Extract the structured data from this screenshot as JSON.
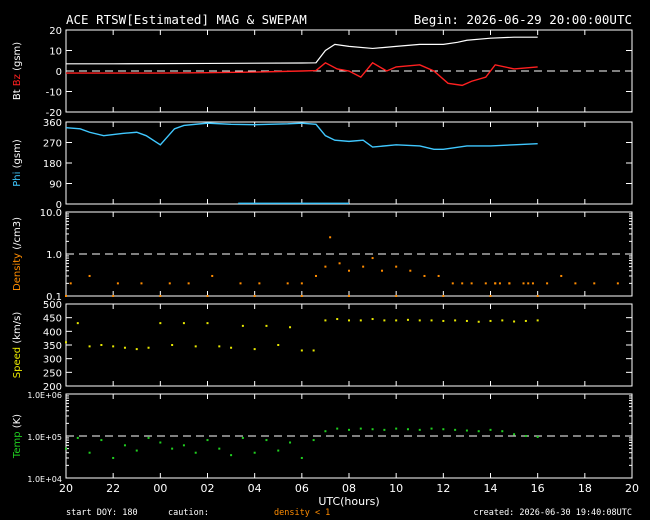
{
  "header": {
    "title": "ACE RTSW[Estimated] MAG & SWEPAM",
    "begin_label": "Begin: 2026-06-29 20:00:00UTC"
  },
  "footer": {
    "start_doy": "start DOY: 180",
    "caution": "caution:",
    "caution_note": "density < 1",
    "created": "created: 2026-06-30 19:40:08UTC"
  },
  "colors": {
    "background": "#000000",
    "frame": "#ffffff",
    "bt": "#ffffff",
    "bz": "#ff2020",
    "phi": "#40c8ff",
    "density": "#ff8c00",
    "speed": "#e8e800",
    "temp": "#20d020"
  },
  "chart_data": [
    {
      "panel": "mag",
      "type": "line",
      "ylabel": [
        "Bt",
        "Bz",
        "(gsm)"
      ],
      "ylim": [
        -20,
        20
      ],
      "yticks": [
        "20",
        "10",
        "0",
        "-10",
        "-20"
      ],
      "reference_line": 0,
      "series": [
        {
          "name": "Bt",
          "x": [
            0,
            2,
            4,
            6,
            8,
            10,
            10.6,
            11,
            11.4,
            12,
            13,
            14,
            15,
            16,
            16.6,
            17,
            18,
            19,
            20
          ],
          "values": [
            3.5,
            3.5,
            3.6,
            3.7,
            3.8,
            3.9,
            4,
            10,
            13,
            12,
            11,
            12,
            13,
            13,
            14,
            15,
            16,
            16.5,
            16.5
          ]
        },
        {
          "name": "Bz",
          "x": [
            0,
            2,
            4,
            6,
            8,
            10,
            10.6,
            11,
            11.5,
            12,
            12.5,
            13,
            13.6,
            14,
            15,
            15.6,
            16.2,
            16.8,
            17.2,
            17.8,
            18.2,
            19,
            20
          ],
          "values": [
            -1,
            -1,
            -1,
            -0.8,
            -0.5,
            0,
            0.2,
            4,
            1,
            0,
            -3,
            4,
            0,
            2,
            3,
            0,
            -6,
            -7,
            -5,
            -3,
            3,
            1,
            2
          ]
        }
      ]
    },
    {
      "panel": "phi",
      "type": "line",
      "ylabel": [
        "Phi",
        "(gsm)"
      ],
      "ylim": [
        0,
        360
      ],
      "yticks": [
        "360",
        "270",
        "180",
        "90",
        "0"
      ],
      "series": [
        {
          "name": "Phi",
          "x": [
            0,
            0.6,
            1,
            1.6,
            2,
            2.4,
            3,
            3.4,
            4,
            4.6,
            5,
            6,
            7,
            8,
            8.6,
            9.4,
            10,
            10.6,
            11,
            11.4,
            12,
            12.6,
            13,
            14,
            15,
            15.6,
            16,
            17,
            18,
            19,
            20
          ],
          "values": [
            335,
            330,
            315,
            300,
            305,
            310,
            315,
            300,
            260,
            330,
            345,
            355,
            350,
            348,
            350,
            352,
            355,
            350,
            300,
            280,
            275,
            280,
            250,
            260,
            255,
            240,
            240,
            255,
            255,
            260,
            265
          ]
        },
        {
          "name": "Phi-low",
          "x": [
            7.3,
            8,
            9,
            10,
            11,
            12
          ],
          "values": [
            3,
            3,
            3,
            3,
            3,
            3
          ]
        }
      ]
    },
    {
      "panel": "density",
      "type": "scatter",
      "ylabel": [
        "Density",
        "(/cm3)"
      ],
      "yscale": "log",
      "ylim": [
        0.1,
        10
      ],
      "yticks": [
        "10.0",
        "1.0",
        "0.1"
      ],
      "reference_line": 1.0,
      "series": [
        {
          "name": "Density",
          "x": [
            18.2,
            18.4,
            18.8,
            19.6,
            20.4,
            21.0,
            21.6,
            22.4,
            23.4,
            0.2,
            1.0,
            2.2,
            3.2,
            4.4,
            5.2,
            6.2,
            7.4,
            8.2,
            9.4,
            10.0,
            10.6,
            11.0,
            11.2,
            11.6,
            12.0,
            12.6,
            13.0,
            13.4,
            14.0,
            14.6,
            15.2,
            15.8,
            16.4,
            16.8,
            17.2,
            17.8,
            18.2,
            18.8,
            19.4,
            19.8
          ],
          "values": [
            0.2,
            0.2,
            0.2,
            0.2,
            0.2,
            0.3,
            0.2,
            0.2,
            0.2,
            0.2,
            0.3,
            0.2,
            0.2,
            0.2,
            0.2,
            0.3,
            0.2,
            0.2,
            0.2,
            0.2,
            0.3,
            0.5,
            2.5,
            0.6,
            0.4,
            0.5,
            0.8,
            0.4,
            0.5,
            0.4,
            0.3,
            0.3,
            0.2,
            0.2,
            0.2,
            0.2,
            0.2,
            0.2,
            0.2,
            0.2
          ]
        },
        {
          "name": "Density-floor",
          "x": [
            0,
            2,
            4,
            6,
            8,
            10,
            12,
            14,
            16,
            18,
            20
          ],
          "values": [
            0.1,
            0.1,
            0.1,
            0.1,
            0.1,
            0.1,
            0.1,
            0.1,
            0.1,
            0.1,
            0.1
          ]
        }
      ]
    },
    {
      "panel": "speed",
      "type": "scatter",
      "ylabel": [
        "Speed",
        "(km/s)"
      ],
      "ylim": [
        200,
        500
      ],
      "yticks": [
        "500",
        "450",
        "400",
        "350",
        "300",
        "250",
        "200"
      ],
      "series": [
        {
          "name": "Speed",
          "x": [
            0,
            0.5,
            1,
            1.5,
            2,
            2.5,
            3,
            3.5,
            4,
            4.5,
            5,
            5.5,
            6,
            6.5,
            7,
            7.5,
            8,
            8.5,
            9,
            9.5,
            10,
            10.5,
            11,
            11.5,
            12,
            12.5,
            13,
            13.5,
            14,
            14.5,
            15,
            15.5,
            16,
            16.5,
            17,
            17.5,
            18,
            18.5,
            19,
            19.5,
            20
          ],
          "values": [
            360,
            430,
            345,
            350,
            345,
            340,
            335,
            340,
            430,
            350,
            430,
            345,
            430,
            345,
            340,
            420,
            335,
            420,
            350,
            415,
            330,
            330,
            440,
            445,
            440,
            440,
            445,
            440,
            440,
            442,
            440,
            440,
            438,
            440,
            438,
            435,
            438,
            440,
            436,
            438,
            440
          ]
        }
      ]
    },
    {
      "panel": "temp",
      "type": "scatter",
      "ylabel": [
        "Temp",
        "(K)"
      ],
      "yscale": "log",
      "ylim": [
        10000,
        1000000
      ],
      "yticks": [
        "1.0E+06",
        "1.0E+05",
        "1.0E+04"
      ],
      "reference_line": 100000,
      "series": [
        {
          "name": "Temp",
          "x": [
            0,
            0.5,
            1,
            1.5,
            2,
            2.5,
            3,
            3.5,
            4,
            4.5,
            5,
            5.5,
            6,
            6.5,
            7,
            7.5,
            8,
            8.5,
            9,
            9.5,
            10,
            10.5,
            11,
            11.5,
            12,
            12.5,
            13,
            13.5,
            14,
            14.5,
            15,
            15.5,
            16,
            16.5,
            17,
            17.5,
            18,
            18.5,
            19,
            19.5,
            20
          ],
          "values": [
            50000,
            90000,
            40000,
            80000,
            30000,
            60000,
            45000,
            90000,
            70000,
            50000,
            60000,
            40000,
            80000,
            50000,
            35000,
            90000,
            40000,
            80000,
            45000,
            70000,
            30000,
            80000,
            130000,
            150000,
            140000,
            150000,
            145000,
            140000,
            150000,
            145000,
            140000,
            150000,
            145000,
            140000,
            135000,
            130000,
            140000,
            130000,
            110000,
            100000,
            95000
          ]
        }
      ]
    },
    {
      "panel": "axis",
      "type": "axis",
      "xlabel": "UTC(hours)",
      "xlim": [
        0,
        24
      ],
      "xticks": [
        "20",
        "22",
        "00",
        "02",
        "04",
        "06",
        "08",
        "10",
        "12",
        "14",
        "16",
        "18",
        "20"
      ]
    }
  ]
}
